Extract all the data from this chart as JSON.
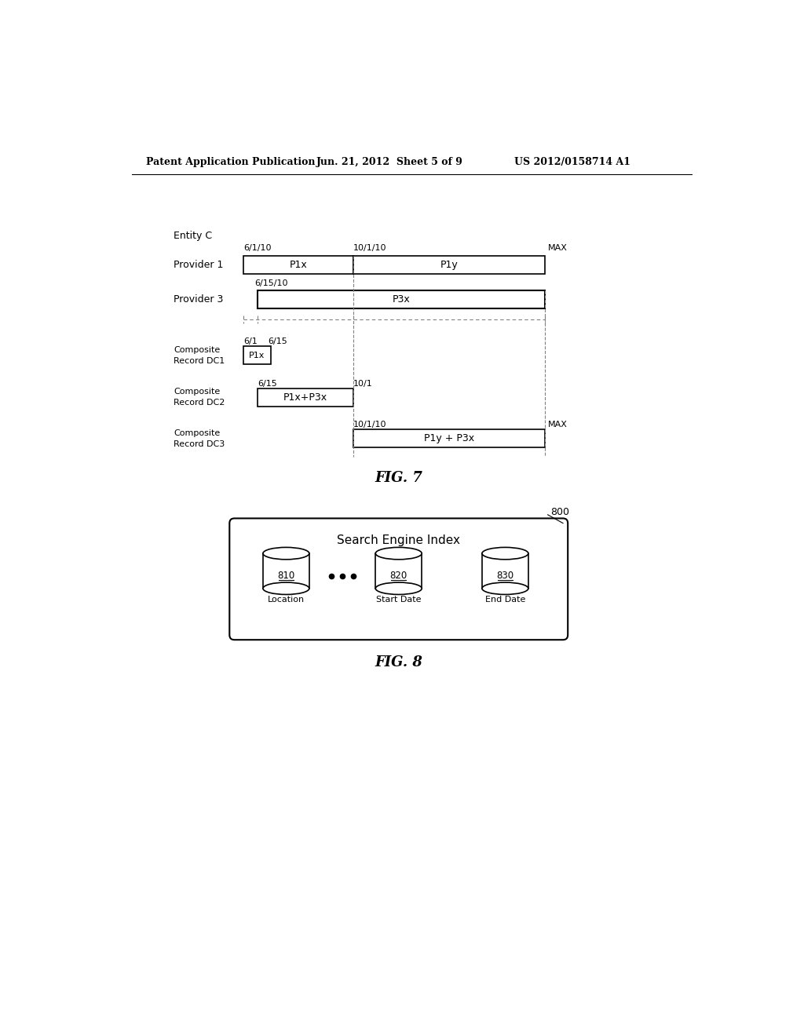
{
  "header_left": "Patent Application Publication",
  "header_center": "Jun. 21, 2012  Sheet 5 of 9",
  "header_right": "US 2012/0158714 A1",
  "fig7_label": "FIG. 7",
  "fig8_label": "FIG. 8",
  "entity_c_label": "Entity C",
  "provider1_label": "Provider 1",
  "provider3_label": "Provider 3",
  "comp_dc1_label": "Composite\nRecord DC1",
  "comp_dc2_label": "Composite\nRecord DC2",
  "comp_dc3_label": "Composite\nRecord DC3",
  "p1x_label": "P1x",
  "p1y_label": "P1y",
  "p3x_label": "P3x",
  "p1x_p3x_label": "P1x+P3x",
  "p1y_p3x_label": "P1y + P3x",
  "date_6110": "6/1/10",
  "date_10110": "10/1/10",
  "date_max": "MAX",
  "date_61510": "6/15/10",
  "date_61": "6/1",
  "date_615": "6/15",
  "date_101": "10/1",
  "date_dc3_start": "10/1/10",
  "date_dc3_end": "MAX",
  "fig8_title": "Search Engine Index",
  "fig8_ref": "800",
  "db1_label": "810",
  "db2_label": "820",
  "db3_label": "830",
  "db1_name": "Location",
  "db2_name": "Start Date",
  "db3_name": "End Date",
  "bg_color": "#ffffff",
  "text_color": "#000000"
}
